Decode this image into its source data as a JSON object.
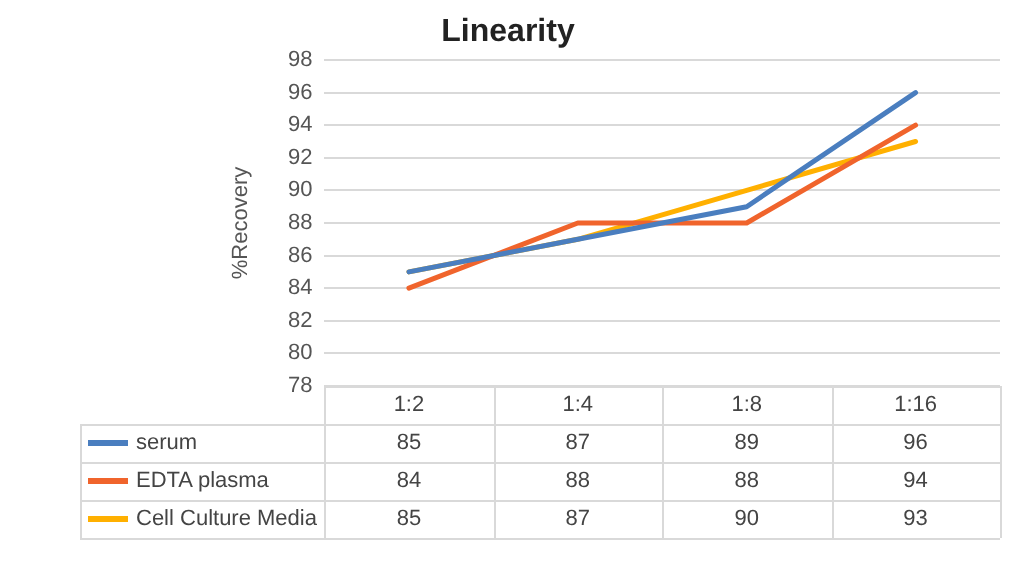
{
  "chart_data": {
    "type": "line",
    "title": "Linearity",
    "ylabel": "%Recovery",
    "categories": [
      "1:2",
      "1:4",
      "1:8",
      "1:16"
    ],
    "series": [
      {
        "name": "serum",
        "color": "#4a7ebf",
        "values": [
          85,
          87,
          89,
          96
        ]
      },
      {
        "name": "EDTA plasma",
        "color": "#f0642c",
        "values": [
          84,
          88,
          88,
          94
        ]
      },
      {
        "name": "Cell Culture Media",
        "color": "#ffb000",
        "values": [
          85,
          87,
          90,
          93
        ]
      }
    ],
    "ylim": [
      78,
      98
    ],
    "yticks": [
      78,
      80,
      82,
      84,
      86,
      88,
      90,
      92,
      94,
      96,
      98
    ],
    "grid": "y",
    "legend": "bottom",
    "data_labels": true,
    "marker": "none",
    "line_style": "solid"
  }
}
